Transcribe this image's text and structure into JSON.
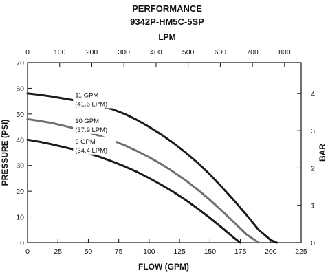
{
  "chart_data": {
    "type": "line",
    "title": "PERFORMANCE",
    "subtitle": "9342P-HM5C-5SP",
    "xlabel": "FLOW (GPM)",
    "ylabel": "PRESSURE (PSI)",
    "x2label": "LPM",
    "y2label": "BAR",
    "xlim": [
      0,
      225
    ],
    "ylim": [
      0,
      70
    ],
    "x2lim": [
      0,
      851.7
    ],
    "y2lim": [
      0,
      4.826
    ],
    "xticks": [
      0,
      25,
      50,
      75,
      100,
      125,
      150,
      175,
      200,
      225
    ],
    "yticks": [
      0,
      10,
      20,
      30,
      40,
      50,
      60,
      70
    ],
    "x2ticks": [
      0,
      100,
      200,
      300,
      400,
      500,
      600,
      700,
      800
    ],
    "y2ticks": [
      0,
      1,
      2,
      3,
      4
    ],
    "grid": false,
    "series": [
      {
        "name": "11 GPM (41.6 LPM)",
        "color": "#1a1a1a",
        "x": [
          0,
          10,
          20,
          30,
          40,
          50,
          60,
          70,
          80,
          90,
          100,
          110,
          120,
          130,
          140,
          150,
          160,
          170,
          180,
          190,
          200,
          205
        ],
        "y": [
          58,
          57.5,
          56.8,
          56,
          55.2,
          54.2,
          53,
          51.8,
          50,
          47.7,
          45,
          42,
          38.7,
          35,
          31,
          26.5,
          21.5,
          16.3,
          10.8,
          5,
          1,
          0
        ]
      },
      {
        "name": "10 GPM (37.9 LPM)",
        "color": "#6f6f6f",
        "x": [
          0,
          10,
          20,
          30,
          40,
          50,
          60,
          70,
          80,
          90,
          100,
          110,
          120,
          130,
          140,
          150,
          160,
          170,
          180,
          190
        ],
        "y": [
          48,
          47.3,
          46.5,
          45.4,
          44.2,
          42.9,
          41.4,
          39.7,
          37.8,
          35.6,
          33.2,
          30.5,
          27.5,
          24.2,
          20.6,
          16.6,
          12.3,
          7.8,
          3.2,
          0
        ]
      },
      {
        "name": "9 GPM (34.4 LPM)",
        "color": "#1a1a1a",
        "x": [
          0,
          10,
          20,
          30,
          40,
          50,
          60,
          70,
          80,
          90,
          100,
          110,
          120,
          130,
          140,
          150,
          160,
          170,
          175
        ],
        "y": [
          40,
          39.2,
          38.2,
          37.1,
          36,
          34.7,
          33.2,
          31.5,
          29.6,
          27.5,
          25.1,
          22.5,
          19.7,
          16.6,
          13.2,
          9.6,
          5.8,
          1.8,
          0
        ]
      }
    ],
    "annotations": [
      {
        "line1": "11 GPM",
        "line2": "(41.6 LPM)",
        "x": 38,
        "y": 56
      },
      {
        "line1": "10 GPM",
        "line2": "(37.9 LPM)",
        "x": 38,
        "y": 46
      },
      {
        "line1": "9 GPM",
        "line2": "(34.4 LPM)",
        "x": 38,
        "y": 38
      }
    ]
  }
}
